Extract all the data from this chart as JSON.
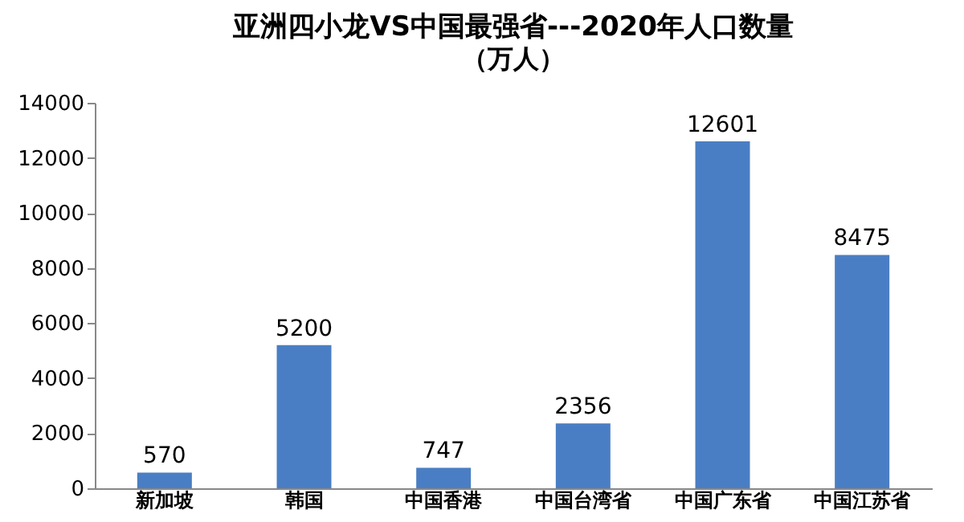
{
  "chart_data": {
    "type": "bar",
    "title": "亚洲四小龙VS中国最强省---2020年人口数量",
    "subtitle": "（万人）",
    "categories": [
      "新加坡",
      "韩国",
      "中国香港",
      "中国台湾省",
      "中国广东省",
      "中国江苏省"
    ],
    "values": [
      570,
      5200,
      747,
      2356,
      12601,
      8475
    ],
    "color": "#4a7ec4",
    "ylim": [
      0,
      14000
    ],
    "yticks": [
      0,
      2000,
      4000,
      6000,
      8000,
      10000,
      12000,
      14000
    ],
    "grid": false,
    "data_labels": true
  }
}
